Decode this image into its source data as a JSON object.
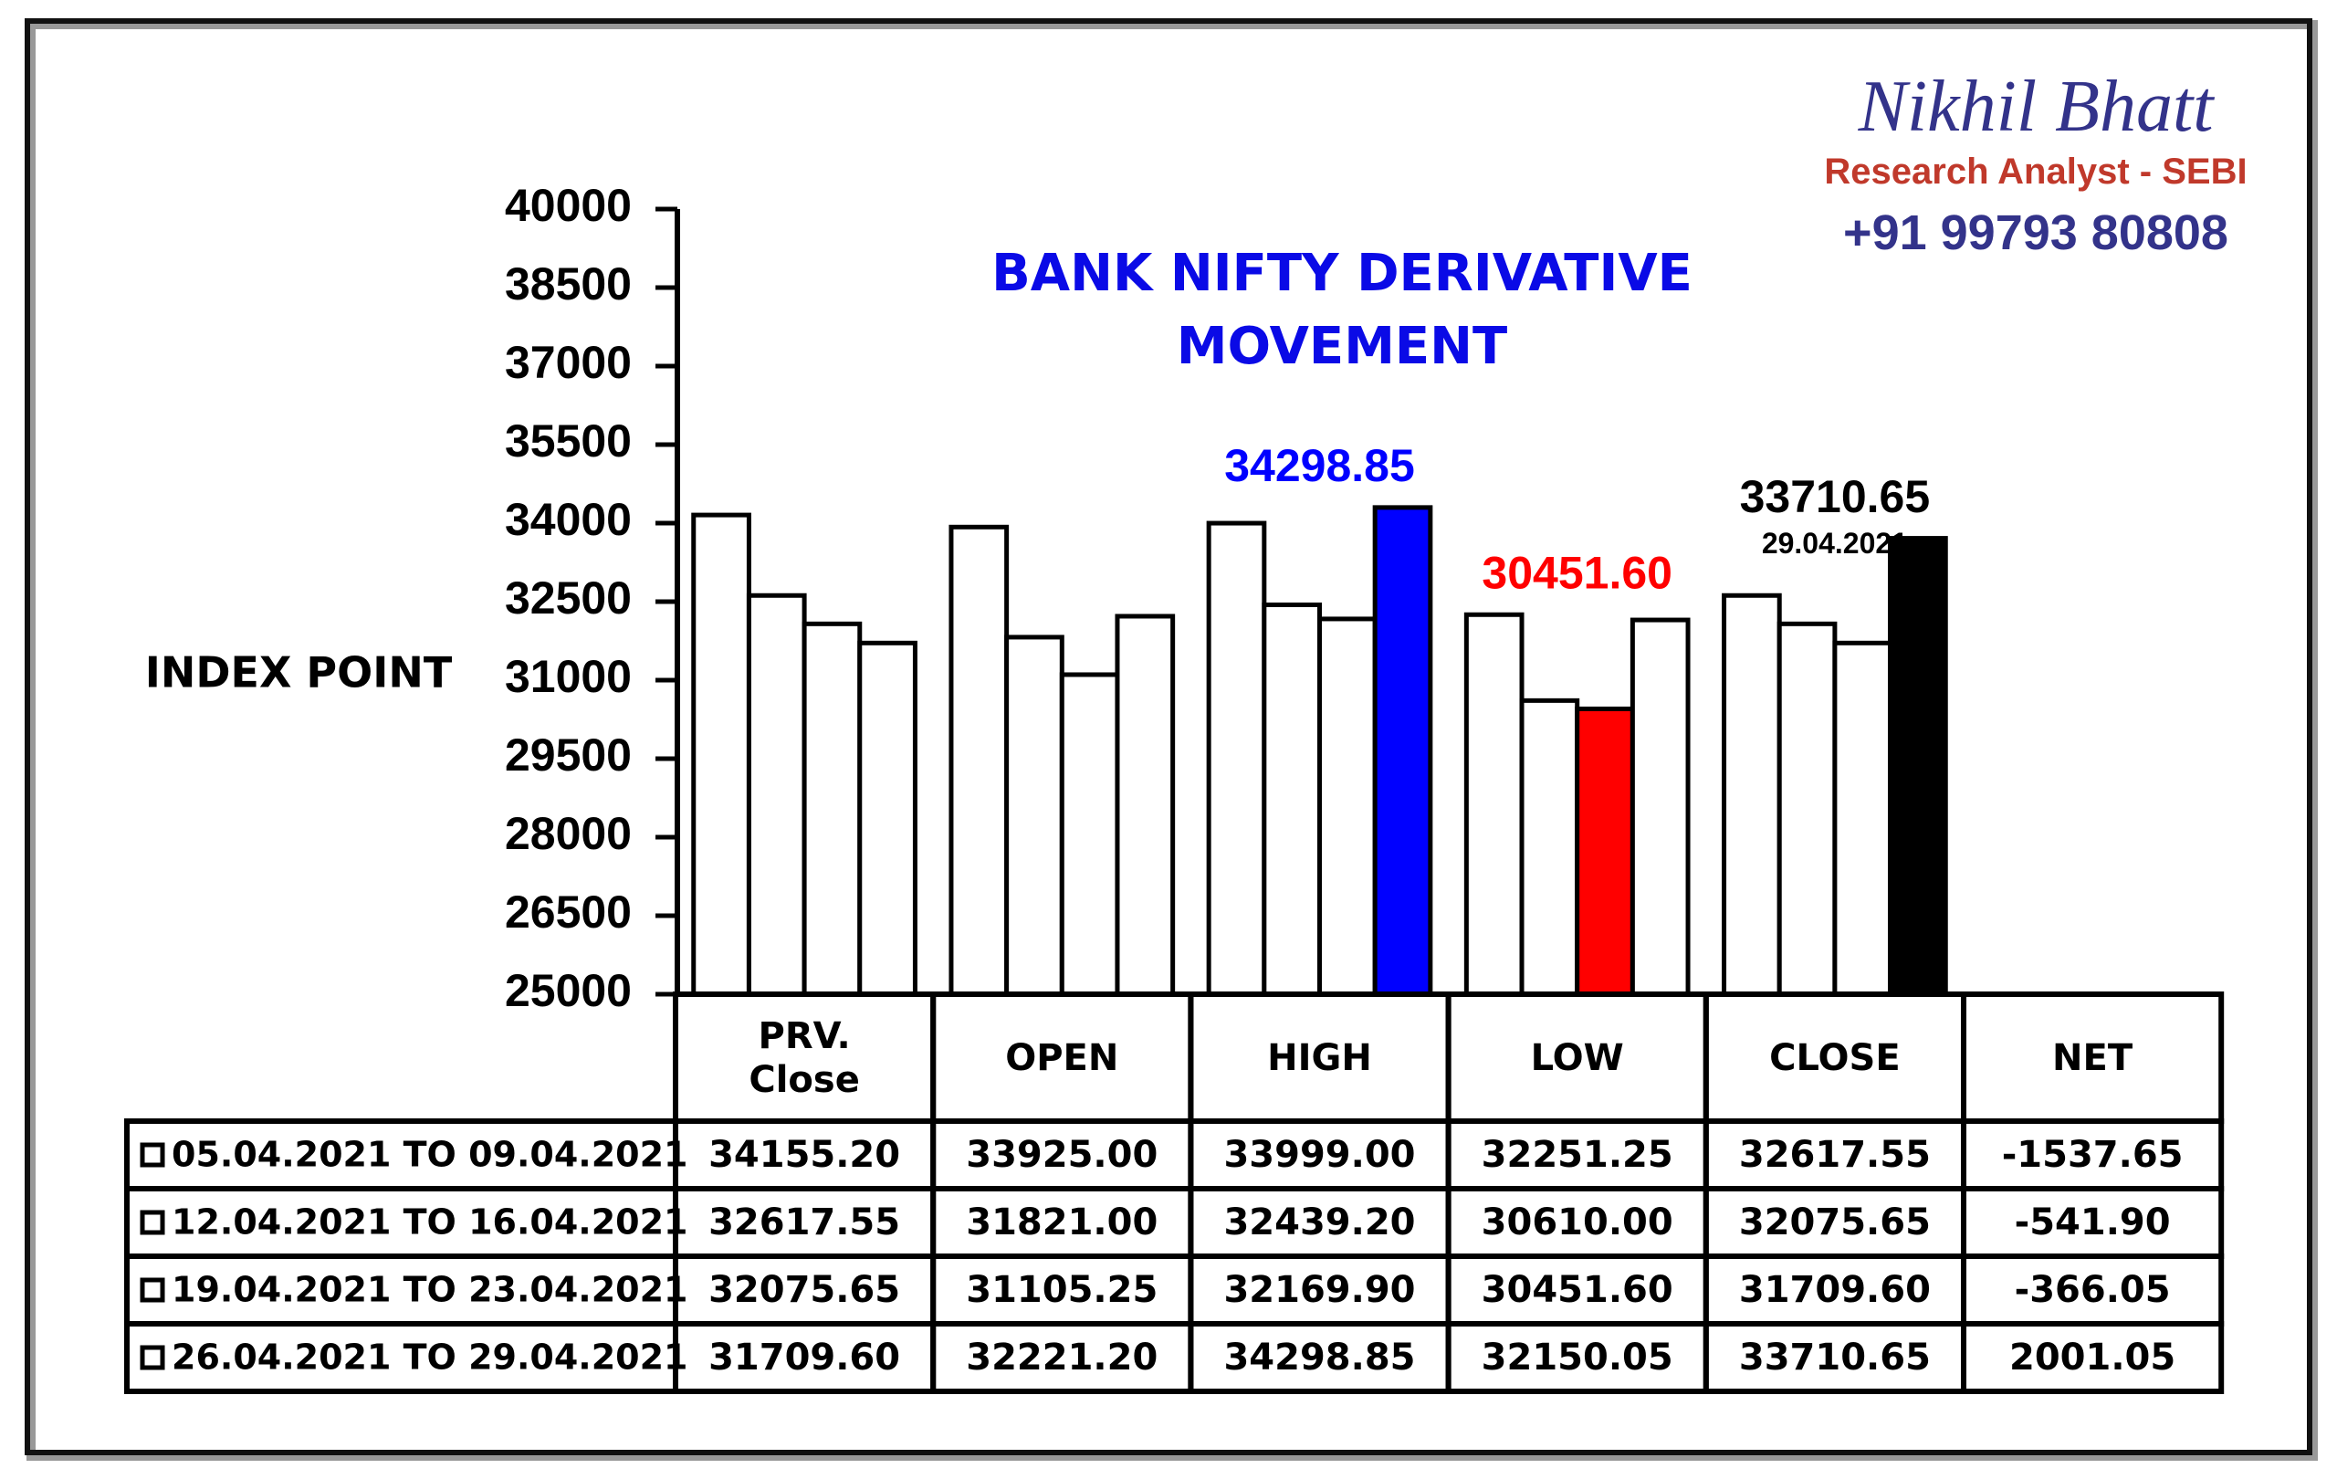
{
  "header": {
    "name": "Nikhil Bhatt",
    "role": "Research Analyst - SEBI",
    "phone": "+91 99793 80808"
  },
  "chart_data": {
    "type": "bar",
    "title": "BANK NIFTY DERIVATIVE MOVEMENT",
    "y_label": "INDEX POINT",
    "categories": [
      "PRV. Close",
      "OPEN",
      "HIGH",
      "LOW",
      "CLOSE"
    ],
    "ylim": [
      25000,
      40000
    ],
    "yticks": [
      25000,
      26500,
      28000,
      29500,
      31000,
      32500,
      34000,
      35500,
      37000,
      38500,
      40000
    ],
    "series": [
      {
        "name": "05.04.2021 TO 09.04.2021",
        "color": "#ffffff",
        "colors": [
          "#ffffff",
          "#ffffff",
          "#ffffff",
          "#ffffff",
          "#ffffff"
        ],
        "values": [
          34155.2,
          33925,
          33999,
          32251.25,
          32617.55
        ],
        "value_labels": [
          "34155.20",
          "33925.00",
          "33999.00",
          "32251.25",
          "32617.55"
        ]
      },
      {
        "name": "12.04.2021 TO 16.04.2021",
        "color": "#ffffff",
        "colors": [
          "#ffffff",
          "#ffffff",
          "#ffffff",
          "#ffffff",
          "#ffffff"
        ],
        "values": [
          32617.55,
          31821,
          32439.2,
          30610,
          32075.65
        ],
        "value_labels": [
          "32617.55",
          "31821.00",
          "32439.20",
          "30610.00",
          "32075.65"
        ]
      },
      {
        "name": "19.04.2021 TO 23.04.2021",
        "color": "#ffffff",
        "colors": [
          "#ffffff",
          "#ffffff",
          "#ffffff",
          "#ff0000",
          "#ffffff"
        ],
        "values": [
          32075.65,
          31105.25,
          32169.9,
          30451.6,
          31709.6
        ],
        "value_labels": [
          "32075.65",
          "31105.25",
          "32169.90",
          "30451.60",
          "31709.60"
        ]
      },
      {
        "name": "26.04.2021 TO 29.04.2021",
        "color": "#ffffff",
        "colors": [
          "#ffffff",
          "#ffffff",
          "#0000ff",
          "#ffffff",
          "#000000"
        ],
        "values": [
          31709.6,
          32221.2,
          34298.85,
          32150.05,
          33710.65
        ],
        "value_labels": [
          "31709.60",
          "32221.20",
          "34298.85",
          "32150.05",
          "33710.65"
        ]
      }
    ],
    "net": {
      "label": "NET",
      "values": [
        -1537.65,
        -541.9,
        -366.05,
        2001.05
      ],
      "value_labels": [
        "-1537.65",
        "-541.90",
        "-366.05",
        "2001.05"
      ]
    },
    "annotation": "29.04.2021"
  }
}
